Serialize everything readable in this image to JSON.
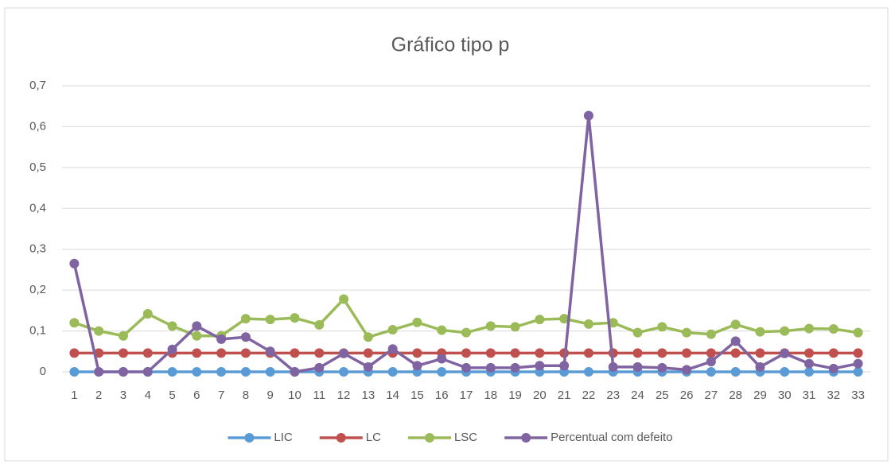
{
  "chart_data": {
    "type": "line",
    "title": "Gráfico tipo p",
    "categories": [
      "1",
      "2",
      "3",
      "4",
      "5",
      "6",
      "7",
      "8",
      "9",
      "10",
      "11",
      "12",
      "13",
      "14",
      "15",
      "16",
      "17",
      "18",
      "19",
      "20",
      "21",
      "22",
      "23",
      "24",
      "25",
      "26",
      "27",
      "28",
      "29",
      "30",
      "31",
      "32",
      "33"
    ],
    "series": [
      {
        "name": "LIC",
        "color": "#5b9bd5",
        "values": [
          0,
          0,
          0,
          0,
          0,
          0,
          0,
          0,
          0,
          0,
          0,
          0,
          0,
          0,
          0,
          0,
          0,
          0,
          0,
          0,
          0,
          0,
          0,
          0,
          0,
          0,
          0,
          0,
          0,
          0,
          0,
          0,
          0
        ]
      },
      {
        "name": "LC",
        "color": "#c0504d",
        "values": [
          0.046,
          0.046,
          0.046,
          0.046,
          0.046,
          0.046,
          0.046,
          0.046,
          0.046,
          0.046,
          0.046,
          0.046,
          0.046,
          0.046,
          0.046,
          0.046,
          0.046,
          0.046,
          0.046,
          0.046,
          0.046,
          0.046,
          0.046,
          0.046,
          0.046,
          0.046,
          0.046,
          0.046,
          0.046,
          0.046,
          0.046,
          0.046,
          0.046
        ]
      },
      {
        "name": "LSC",
        "color": "#9bbb59",
        "values": [
          0.12,
          0.1,
          0.088,
          0.142,
          0.112,
          0.088,
          0.088,
          0.13,
          0.128,
          0.132,
          0.115,
          0.178,
          0.085,
          0.103,
          0.121,
          0.102,
          0.096,
          0.112,
          0.11,
          0.128,
          0.13,
          0.117,
          0.12,
          0.096,
          0.11,
          0.096,
          0.092,
          0.116,
          0.098,
          0.1,
          0.106,
          0.105,
          0.096
        ]
      },
      {
        "name": "Percentual com defeito",
        "color": "#8064a2",
        "values": [
          0.265,
          0,
          0,
          0,
          0.055,
          0.112,
          0.08,
          0.085,
          0.05,
          0,
          0.01,
          0.045,
          0.012,
          0.056,
          0.015,
          0.032,
          0.01,
          0.01,
          0.01,
          0.015,
          0.015,
          0.627,
          0.012,
          0.012,
          0.01,
          0.005,
          0.025,
          0.075,
          0.012,
          0.045,
          0.02,
          0.008,
          0.02
        ]
      }
    ],
    "ylim": [
      0,
      0.7
    ],
    "yticks": [
      0,
      {
        "value": 0.1,
        "label": "0,1"
      },
      {
        "value": 0.2,
        "label": "0,2"
      },
      {
        "value": 0.3,
        "label": "0,3"
      },
      {
        "value": 0.4,
        "label": "0,4"
      },
      {
        "value": 0.5,
        "label": "0,5"
      },
      {
        "value": 0.6,
        "label": "0,6"
      },
      {
        "value": 0.7,
        "label": "0,7"
      }
    ],
    "grid": true,
    "legend": "bottom"
  }
}
